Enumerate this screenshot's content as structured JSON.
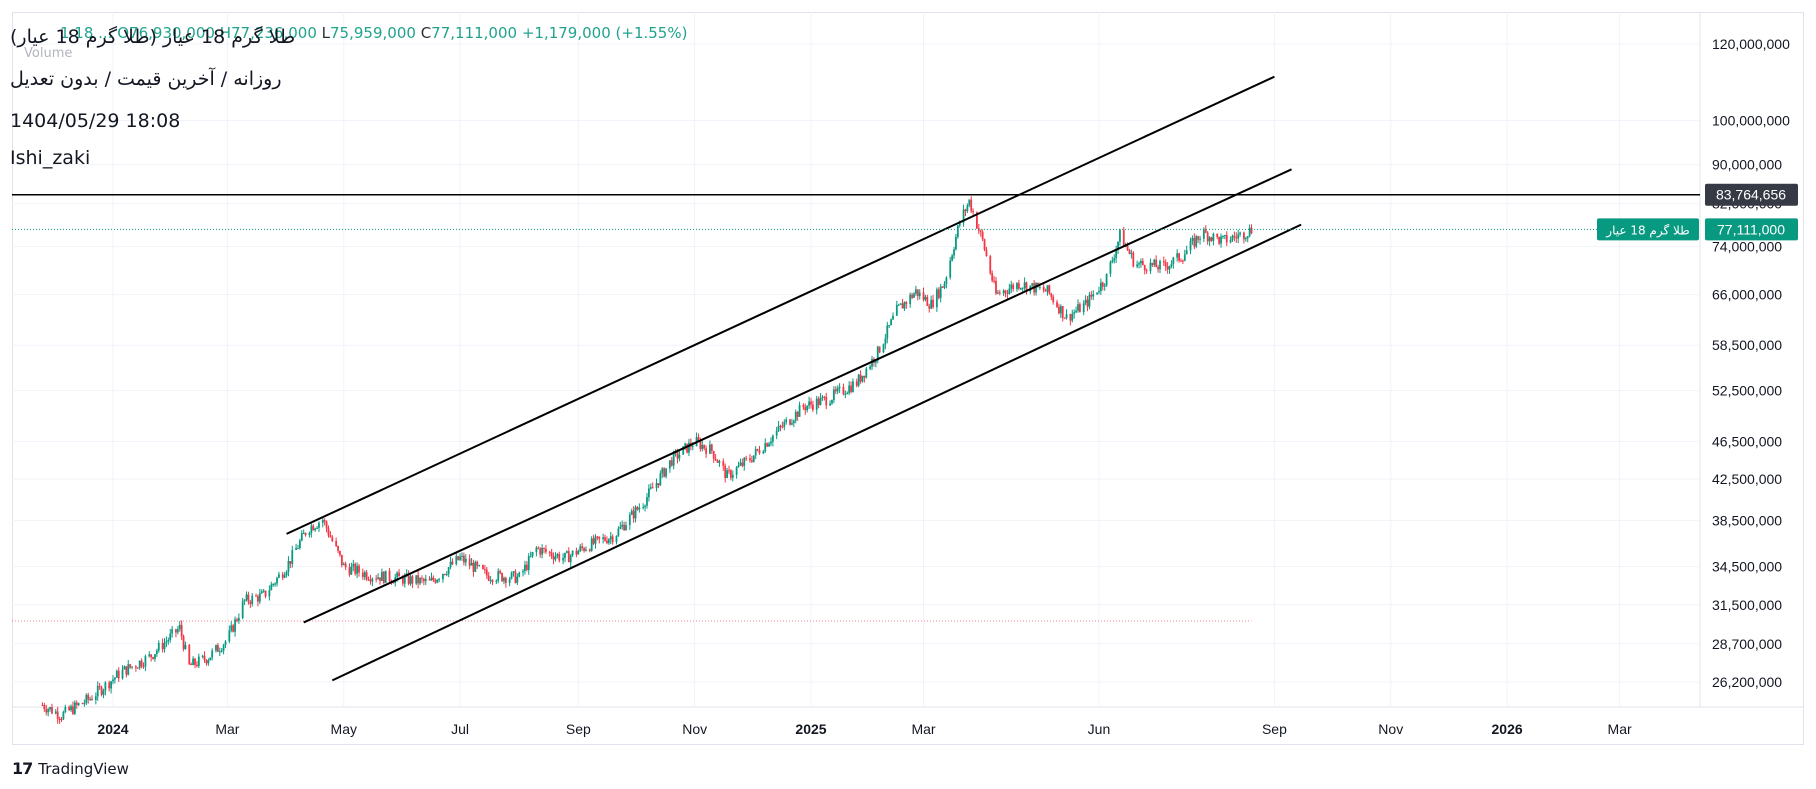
{
  "header": {
    "title": "طلا گرم 18 عیار (طلا گرم 18 عیار)",
    "ohlc_fragment": "1  18  ...  O76,930,000  H77,236,000",
    "low_key": "L",
    "low_value": "75,959,000",
    "close_key": "C",
    "close_value": "77,111,000",
    "change": "+1,179,000 (+1.55%)",
    "volume_label": "Volume",
    "subtitle": "روزانه / آخرین قیمت / بدون تعدیل",
    "datetime": "1404/05/29 18:08",
    "author": "Ishi_zaki"
  },
  "footer": {
    "brand": "TradingView",
    "brand_icon": "tradingview-logo-icon"
  },
  "colors": {
    "up": "#089981",
    "down": "#f23645",
    "price_line": "#089981",
    "hline": "#000000",
    "label_dark": "#363a45"
  },
  "chart_data": {
    "type": "candlestick",
    "title": "طلا گرم 18 عیار (طلا گرم 18 عیار)",
    "y_scale": "log",
    "y_ticks": [
      "26,200,000",
      "28,700,000",
      "31,500,000",
      "34,500,000",
      "38,500,000",
      "42,500,000",
      "46,500,000",
      "52,500,000",
      "58,500,000",
      "66,000,000",
      "74,000,000",
      "82,000,000",
      "90,000,000",
      "100,000,000",
      "120,000,000"
    ],
    "y_tick_values": [
      26200000,
      28700000,
      31500000,
      34500000,
      38500000,
      42500000,
      46500000,
      52500000,
      58500000,
      66000000,
      74000000,
      82000000,
      90000000,
      100000000,
      120000000
    ],
    "x_ticks": [
      {
        "label": "2024",
        "date": "2024-01-01",
        "bold": true
      },
      {
        "label": "Mar",
        "date": "2024-03-01"
      },
      {
        "label": "May",
        "date": "2024-05-01"
      },
      {
        "label": "Jul",
        "date": "2024-07-01"
      },
      {
        "label": "Sep",
        "date": "2024-09-01"
      },
      {
        "label": "Nov",
        "date": "2024-11-01"
      },
      {
        "label": "2025",
        "date": "2025-01-01",
        "bold": true
      },
      {
        "label": "Mar",
        "date": "2025-03-01"
      },
      {
        "label": "Jun",
        "date": "2025-06-01"
      },
      {
        "label": "Sep",
        "date": "2025-09-01"
      },
      {
        "label": "Nov",
        "date": "2025-11-01"
      },
      {
        "label": "2026",
        "date": "2026-01-01",
        "bold": true
      },
      {
        "label": "Mar",
        "date": "2026-03-01"
      },
      {
        "label": "Ma",
        "date": "2026-05-01"
      }
    ],
    "close_path": [
      [
        "2023-11-25",
        24800000
      ],
      [
        "2023-12-05",
        24200000
      ],
      [
        "2023-12-20",
        25200000
      ],
      [
        "2024-01-05",
        26800000
      ],
      [
        "2024-01-20",
        27800000
      ],
      [
        "2024-02-05",
        29800000
      ],
      [
        "2024-02-10",
        27200000
      ],
      [
        "2024-02-20",
        27800000
      ],
      [
        "2024-03-01",
        29000000
      ],
      [
        "2024-03-10",
        31800000
      ],
      [
        "2024-03-20",
        32200000
      ],
      [
        "2024-04-01",
        34500000
      ],
      [
        "2024-04-12",
        37800000
      ],
      [
        "2024-04-20",
        38600000
      ],
      [
        "2024-05-01",
        34500000
      ],
      [
        "2024-05-15",
        33800000
      ],
      [
        "2024-06-01",
        33500000
      ],
      [
        "2024-06-15",
        33200000
      ],
      [
        "2024-07-01",
        35200000
      ],
      [
        "2024-07-15",
        33800000
      ],
      [
        "2024-08-01",
        33600000
      ],
      [
        "2024-08-10",
        36000000
      ],
      [
        "2024-08-25",
        35200000
      ],
      [
        "2024-09-05",
        36200000
      ],
      [
        "2024-09-20",
        37200000
      ],
      [
        "2024-10-05",
        40200000
      ],
      [
        "2024-10-20",
        44500000
      ],
      [
        "2024-11-01",
        46500000
      ],
      [
        "2024-11-10",
        45500000
      ],
      [
        "2024-11-18",
        42800000
      ],
      [
        "2024-12-01",
        44800000
      ],
      [
        "2024-12-15",
        47800000
      ],
      [
        "2024-12-28",
        50500000
      ],
      [
        "2025-01-10",
        51500000
      ],
      [
        "2025-01-25",
        53500000
      ],
      [
        "2025-02-05",
        57500000
      ],
      [
        "2025-02-15",
        63500000
      ],
      [
        "2025-02-25",
        66500000
      ],
      [
        "2025-03-05",
        64500000
      ],
      [
        "2025-03-12",
        68000000
      ],
      [
        "2025-03-20",
        78500000
      ],
      [
        "2025-03-25",
        82500000
      ],
      [
        "2025-04-01",
        75000000
      ],
      [
        "2025-04-08",
        66000000
      ],
      [
        "2025-04-20",
        67800000
      ],
      [
        "2025-05-05",
        66500000
      ],
      [
        "2025-05-15",
        62500000
      ],
      [
        "2025-05-25",
        64500000
      ],
      [
        "2025-06-05",
        68800000
      ],
      [
        "2025-06-12",
        76000000
      ],
      [
        "2025-06-20",
        71000000
      ],
      [
        "2025-07-05",
        70500000
      ],
      [
        "2025-07-15",
        72500000
      ],
      [
        "2025-07-25",
        76500000
      ],
      [
        "2025-08-05",
        75000000
      ],
      [
        "2025-08-15",
        76200000
      ],
      [
        "2025-08-20",
        77111000
      ]
    ],
    "horizontal_line": {
      "value": 83764656,
      "label": "83,764,656"
    },
    "price_line": {
      "value": 77111000,
      "label": "77,111,000",
      "symbol_label": "طلا گرم 18 عیار"
    },
    "dotted_line": {
      "value": 30300000,
      "end_date": "2025-08-20"
    },
    "trendlines": [
      {
        "name": "upper",
        "from": [
          "2024-04-01",
          37300000
        ],
        "to": [
          "2025-09-01",
          111000000
        ]
      },
      {
        "name": "middle",
        "from": [
          "2024-04-10",
          30200000
        ],
        "to": [
          "2025-09-10",
          89000000
        ]
      },
      {
        "name": "lower",
        "from": [
          "2024-04-25",
          26300000
        ],
        "to": [
          "2025-09-15",
          78000000
        ]
      }
    ]
  }
}
